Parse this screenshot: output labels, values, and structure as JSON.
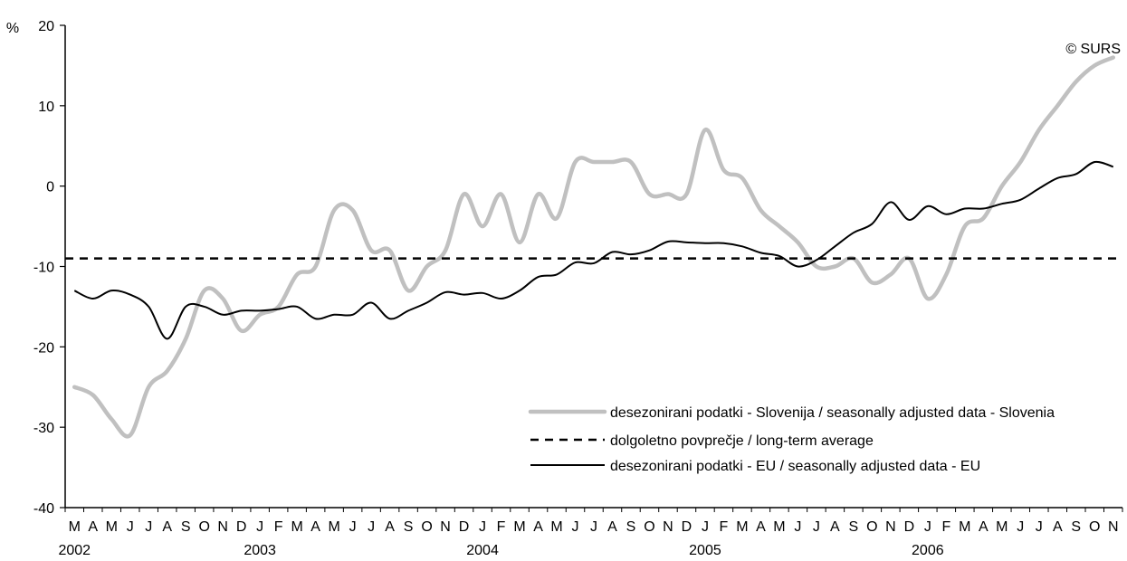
{
  "chart_data": {
    "type": "line",
    "unit_label": "%",
    "copyright": "© SURS",
    "ylim": [
      -40,
      20
    ],
    "yticks": [
      20,
      10,
      0,
      -10,
      -20,
      -30,
      -40
    ],
    "x_months": [
      "M",
      "A",
      "M",
      "J",
      "J",
      "A",
      "S",
      "O",
      "N",
      "D",
      "J",
      "F",
      "M",
      "A",
      "M",
      "J",
      "J",
      "A",
      "S",
      "O",
      "N",
      "D",
      "J",
      "F",
      "M",
      "A",
      "M",
      "J",
      "J",
      "A",
      "S",
      "O",
      "N",
      "D",
      "J",
      "F",
      "M",
      "A",
      "M",
      "J",
      "J",
      "A",
      "S",
      "O",
      "N",
      "D",
      "J",
      "F",
      "M",
      "A",
      "M",
      "J",
      "J",
      "A",
      "S",
      "O",
      "N"
    ],
    "x_years": [
      {
        "label": "2002",
        "month_index": 0
      },
      {
        "label": "2003",
        "month_index": 10
      },
      {
        "label": "2004",
        "month_index": 22
      },
      {
        "label": "2005",
        "month_index": 34
      },
      {
        "label": "2006",
        "month_index": 46
      }
    ],
    "series": [
      {
        "name": "desezonirani podatki - Slovenija / seasonally adjusted data - Slovenia",
        "color": "#c0c0c0",
        "style": "solid",
        "values": [
          -25,
          -26,
          -29,
          -31,
          -25,
          -23,
          -19,
          -13,
          -14,
          -18,
          -16,
          -15,
          -11,
          -10,
          -3,
          -3,
          -8,
          -8,
          -13,
          -10,
          -8,
          -1,
          -5,
          -1,
          -7,
          -1,
          -4,
          3,
          3,
          3,
          3,
          -1,
          -1,
          -1,
          7,
          2,
          1,
          -3,
          -5,
          -7,
          -10,
          -10,
          -9,
          -12,
          -11,
          -9,
          -14,
          -11,
          -5,
          -4,
          0,
          3,
          7,
          10,
          13,
          15,
          16
        ]
      },
      {
        "name": "dolgoletno povprečje / long-term average",
        "color": "#000000",
        "style": "dashed",
        "values": [
          -9,
          -9,
          -9,
          -9,
          -9,
          -9,
          -9,
          -9,
          -9,
          -9,
          -9,
          -9,
          -9,
          -9,
          -9,
          -9,
          -9,
          -9,
          -9,
          -9,
          -9,
          -9,
          -9,
          -9,
          -9,
          -9,
          -9,
          -9,
          -9,
          -9,
          -9,
          -9,
          -9,
          -9,
          -9,
          -9,
          -9,
          -9,
          -9,
          -9,
          -9,
          -9,
          -9,
          -9,
          -9,
          -9,
          -9,
          -9,
          -9,
          -9,
          -9,
          -9,
          -9,
          -9,
          -9,
          -9,
          -9
        ]
      },
      {
        "name": "desezonirani podatki - EU / seasonally adjusted data - EU",
        "color": "#000000",
        "style": "solid",
        "values": [
          -13,
          -14,
          -13,
          -13.5,
          -15,
          -19,
          -15,
          -15,
          -16,
          -15.5,
          -15.5,
          -15.3,
          -15,
          -16.5,
          -16,
          -16,
          -14.5,
          -16.5,
          -15.5,
          -14.5,
          -13.2,
          -13.5,
          -13.3,
          -14,
          -13,
          -11.3,
          -11,
          -9.5,
          -9.6,
          -8.2,
          -8.5,
          -8,
          -6.9,
          -7,
          -7.1,
          -7.1,
          -7.5,
          -8.3,
          -8.7,
          -10,
          -9.2,
          -7.5,
          -5.8,
          -4.7,
          -2,
          -4.2,
          -2.5,
          -3.5,
          -2.8,
          -2.8,
          -2.2,
          -1.7,
          -0.3,
          1,
          1.5,
          3,
          2.4
        ]
      }
    ]
  }
}
